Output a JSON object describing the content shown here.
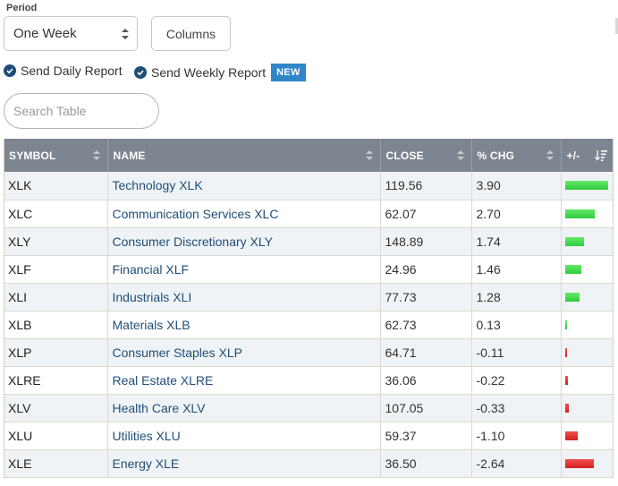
{
  "period": {
    "label": "Period",
    "selected": "One Week"
  },
  "columns_label": "Columns",
  "reports": {
    "daily": "Send Daily Report",
    "weekly": "Send Weekly Report",
    "new_badge": "NEW"
  },
  "search": {
    "placeholder": "Search Table"
  },
  "table": {
    "headers": [
      "SYMBOL",
      "NAME",
      "CLOSE",
      "% CHG",
      "+/-"
    ],
    "rows": [
      {
        "symbol": "XLK",
        "name": "Technology XLK",
        "close": "119.56",
        "chg": "3.90"
      },
      {
        "symbol": "XLC",
        "name": "Communication Services XLC",
        "close": "62.07",
        "chg": "2.70"
      },
      {
        "symbol": "XLY",
        "name": "Consumer Discretionary XLY",
        "close": "148.89",
        "chg": "1.74"
      },
      {
        "symbol": "XLF",
        "name": "Financial XLF",
        "close": "24.96",
        "chg": "1.46"
      },
      {
        "symbol": "XLI",
        "name": "Industrials XLI",
        "close": "77.73",
        "chg": "1.28"
      },
      {
        "symbol": "XLB",
        "name": "Materials XLB",
        "close": "62.73",
        "chg": "0.13"
      },
      {
        "symbol": "XLP",
        "name": "Consumer Staples XLP",
        "close": "64.71",
        "chg": "-0.11"
      },
      {
        "symbol": "XLRE",
        "name": "Real Estate XLRE",
        "close": "36.06",
        "chg": "-0.22"
      },
      {
        "symbol": "XLV",
        "name": "Health Care XLV",
        "close": "107.05",
        "chg": "-0.33"
      },
      {
        "symbol": "XLU",
        "name": "Utilities XLU",
        "close": "59.37",
        "chg": "-1.10"
      },
      {
        "symbol": "XLE",
        "name": "Energy XLE",
        "close": "36.50",
        "chg": "-2.64"
      }
    ]
  },
  "colors": {
    "header_bg": "#7d8590",
    "link": "#1f4e79",
    "positive": "#2ecc40",
    "negative": "#d62020",
    "badge": "#2f86c9"
  },
  "icons": {
    "select_arrows": "chevron-updown-icon",
    "sort": "sort-icon",
    "sort_desc": "sort-descending-icon",
    "check": "check-circle-icon"
  }
}
